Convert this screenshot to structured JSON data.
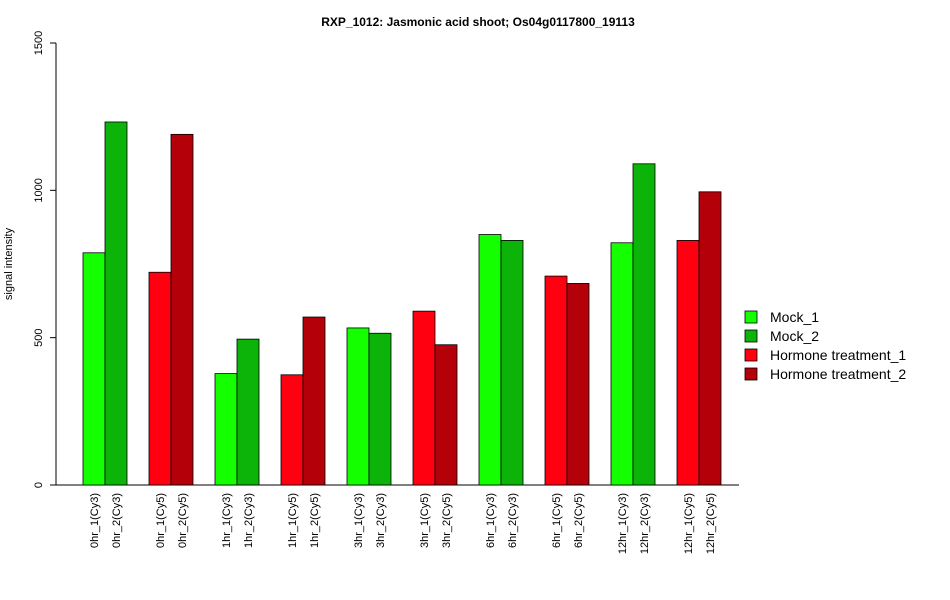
{
  "chart_data": {
    "type": "bar",
    "title": "RXP_1012: Jasmonic acid shoot; Os04g0117800_19113",
    "xlabel": "",
    "ylabel": "signal intensity",
    "ylim": [
      0,
      1500
    ],
    "yticks": [
      "0",
      "500",
      "1000",
      "1500"
    ],
    "grid": false,
    "legend_position": "right",
    "categories": [
      "0hr_1(Cy3)",
      "0hr_2(Cy3)",
      "0hr_1(Cy5)",
      "0hr_2(Cy5)",
      "1hr_1(Cy3)",
      "1hr_2(Cy3)",
      "1hr_1(Cy5)",
      "1hr_2(Cy5)",
      "3hr_1(Cy3)",
      "3hr_2(Cy3)",
      "3hr_1(Cy5)",
      "3hr_2(Cy5)",
      "6hr_1(Cy3)",
      "6hr_2(Cy3)",
      "6hr_1(Cy5)",
      "6hr_2(Cy5)",
      "12hr_1(Cy3)",
      "12hr_2(Cy3)",
      "12hr_1(Cy5)",
      "12hr_2(Cy5)"
    ],
    "values": [
      788,
      1232,
      722,
      1190,
      378,
      495,
      374,
      570,
      533,
      515,
      590,
      476,
      850,
      830,
      709,
      684,
      822,
      1090,
      830,
      995
    ],
    "bar_series": [
      0,
      1,
      2,
      3,
      0,
      1,
      2,
      3,
      0,
      1,
      2,
      3,
      0,
      1,
      2,
      3,
      0,
      1,
      2,
      3
    ],
    "series": [
      {
        "name": "Mock_1",
        "color": "#14ff00"
      },
      {
        "name": "Mock_2",
        "color": "#0cb40a"
      },
      {
        "name": "Hormone treatment_1",
        "color": "#ff0010"
      },
      {
        "name": "Hormone treatment_2",
        "color": "#b40008"
      }
    ]
  }
}
